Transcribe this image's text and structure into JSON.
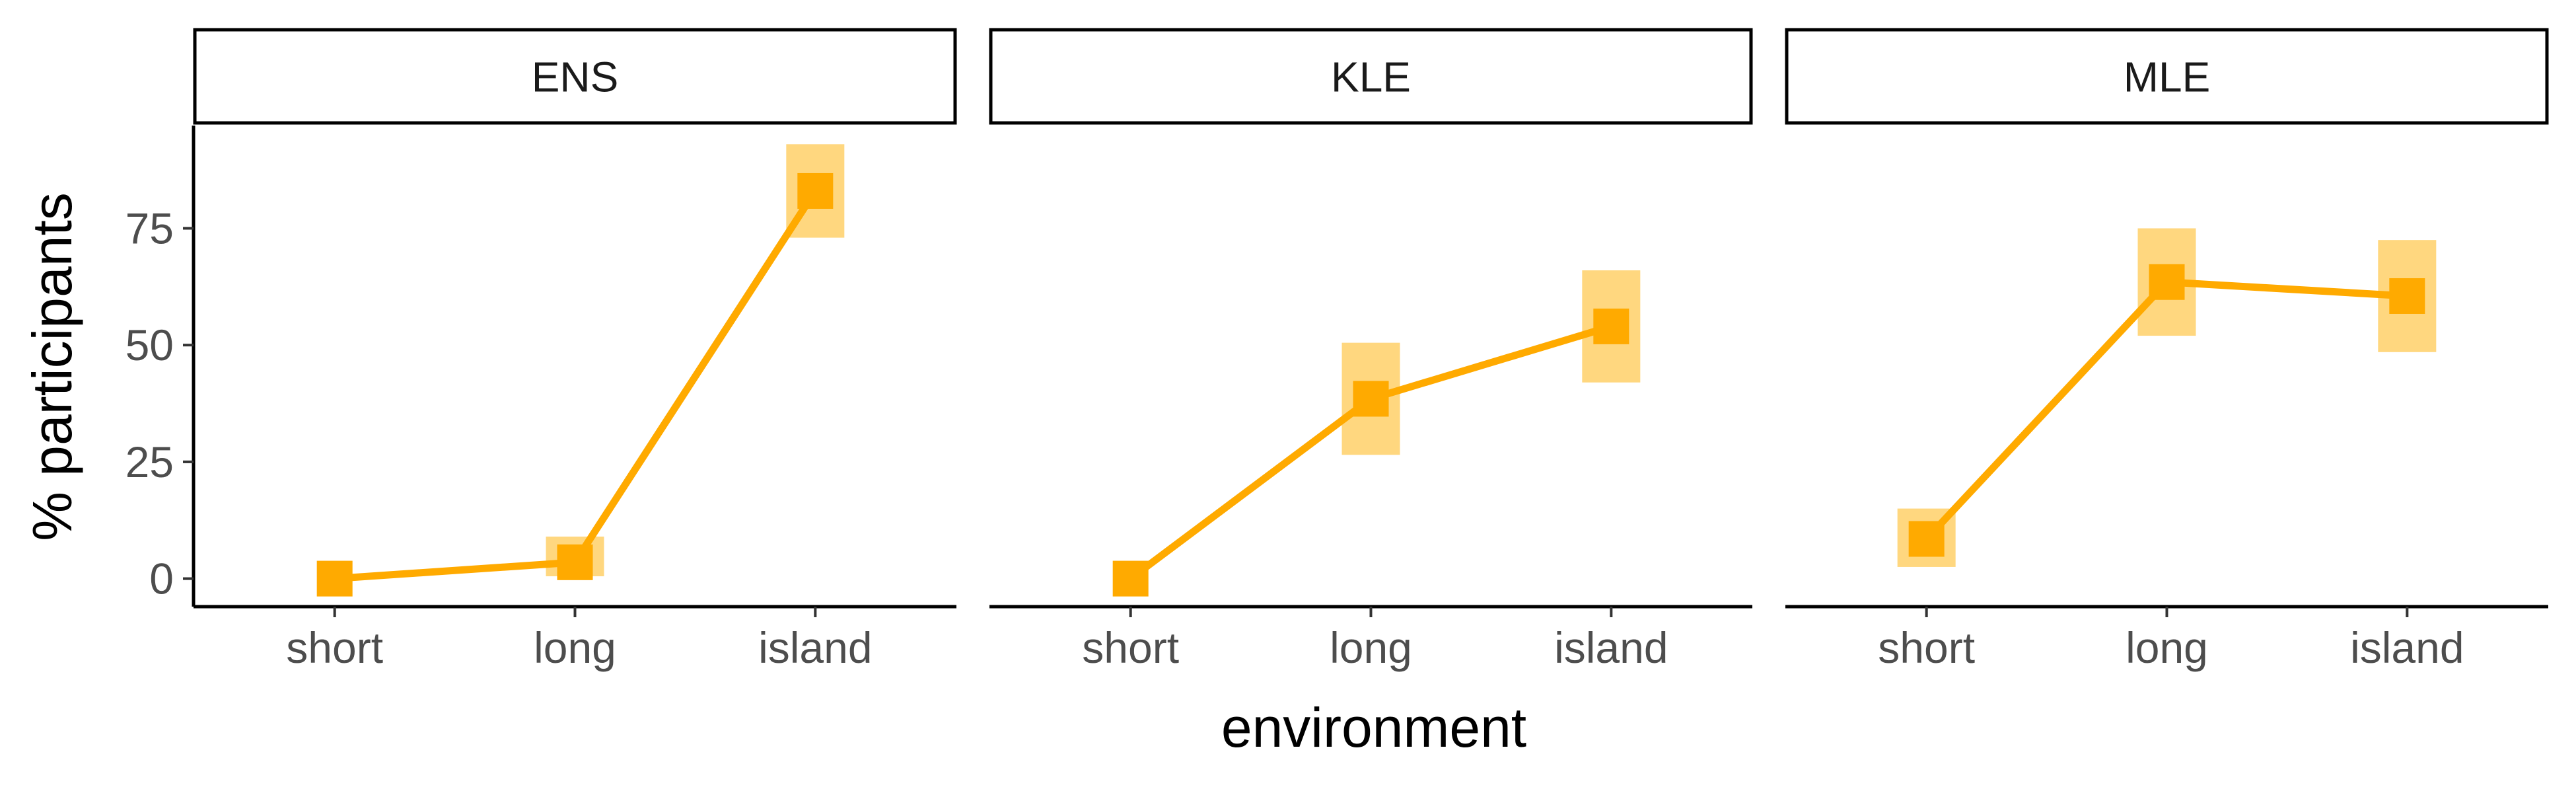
{
  "chart_data": {
    "type": "line",
    "xlabel": "environment",
    "ylabel": "% participants",
    "categories": [
      "short",
      "long",
      "island"
    ],
    "y_ticks": [
      0,
      25,
      50,
      75
    ],
    "ylim": [
      -6,
      97
    ],
    "grid": false,
    "colors": {
      "line": "#FFAA00",
      "ribbon": "#FFD77F",
      "axis": "#000000"
    },
    "panels": [
      {
        "name": "ENS",
        "points": [
          {
            "x": "short",
            "y": 0,
            "lo": 0,
            "hi": 0
          },
          {
            "x": "long",
            "y": 3.5,
            "lo": 0.5,
            "hi": 9
          },
          {
            "x": "island",
            "y": 83,
            "lo": 73,
            "hi": 93
          }
        ]
      },
      {
        "name": "KLE",
        "points": [
          {
            "x": "short",
            "y": 0,
            "lo": 0,
            "hi": 0
          },
          {
            "x": "long",
            "y": 38.5,
            "lo": 26.5,
            "hi": 50.5
          },
          {
            "x": "island",
            "y": 54,
            "lo": 42,
            "hi": 66
          }
        ]
      },
      {
        "name": "MLE",
        "points": [
          {
            "x": "short",
            "y": 8.5,
            "lo": 2.5,
            "hi": 15
          },
          {
            "x": "long",
            "y": 63.5,
            "lo": 52,
            "hi": 75
          },
          {
            "x": "island",
            "y": 60.5,
            "lo": 48.5,
            "hi": 72.5
          }
        ]
      }
    ]
  }
}
